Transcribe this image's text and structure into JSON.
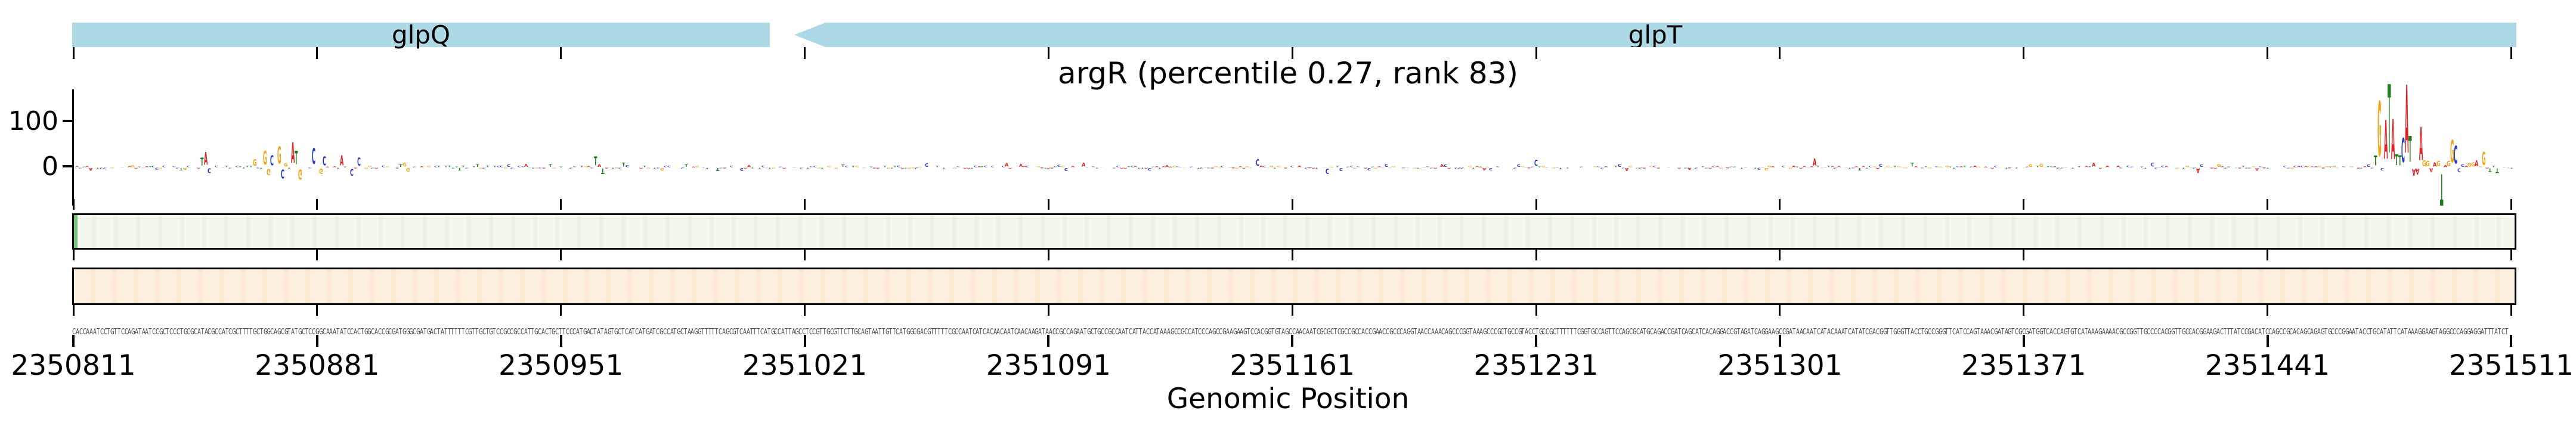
{
  "figure": {
    "background": "#ffffff"
  },
  "title": {
    "text": "argR (percentile 0.27, rank 83)"
  },
  "gene_track": {
    "fill": "#add8e6",
    "genes": [
      {
        "label": "glpQ",
        "start": 2350811,
        "end": 2351011,
        "strand": "+",
        "clipped_left": true
      },
      {
        "label": "glpT",
        "start": 2351018,
        "end": 2351511,
        "strand": "-",
        "clipped_right": true
      }
    ]
  },
  "attribution_panel": {
    "y_ticks": [
      {
        "value": 100,
        "label": "100"
      },
      {
        "value": 0,
        "label": "0"
      }
    ]
  },
  "marker_track": {
    "fill": "#f2f8ee",
    "border": "#000000",
    "marker_position": 2351485,
    "marker_color": "#7cc47c"
  },
  "sequence_track": {
    "fill": "#fdf0e1",
    "border": "#000000"
  },
  "axis": {
    "start": 2350811,
    "end": 2351511,
    "tick_interval": 70,
    "tick_labels": [
      "2350811",
      "2350881",
      "2350951",
      "2351021",
      "2351091",
      "2351161",
      "2351231",
      "2351301",
      "2351371",
      "2351441",
      "2351511"
    ],
    "xlabel": "Genomic Position"
  },
  "chart_data": {
    "type": "sequence-logo",
    "title": "argR (percentile 0.27, rank 83)",
    "window": {
      "start": 2350811,
      "end": 2351511
    },
    "ylim": [
      -80,
      170
    ],
    "y_ticks": [
      0,
      100
    ],
    "base_colors": {
      "A": "#e02426",
      "C": "#2337c6",
      "G": "#f5a216",
      "T": "#1f7d1f"
    },
    "sequence": "CACCAAATCCTGTTCCAGATAATCCGCTCCCTGCGCATACGCCATCGCTTTTGCTGGCAGCGTATGCTCCGGCAAATATCCACTGGCACCGCGATGGGCGATGACTATTTTTTCGTTGCTGTCCGCCGCCATTGCACTGCTTCCCATGACTATAGTGCTCATCATGATCGCCATGCTAAGGTTTTTCAGCGTCAATTTCATGCCATTAGCCTCCGTTGCGTTCTTGCAGTAATTGTTCATGGCGACGTTTTTCGCCAATCATCACAACAATCAACAAGATAACCGCCAGAATGCTGCCGCCAATCATTACCATAAAGCCGCCATCCCAGCCGAAGAAGTCCACGGTGTAGCCAACAATCGCGCTCGCCGCCACCGAACCGCCCAGGTAACCAAACAGCCCGGTAAAGCCCGCTGCCGTACCTGCCGCTTTTTTCGGTGCCAGTTCCAGCGCATGCAGACCGATCAGCATCACAGGACCGTAGATCAGGAAGCCGATAACAATCATACAAATCATATCGACGGTTGGGTTACCTGCCGGGTTCATCCAGTAAACGATAGTCGCGATGGTCACCAGTGTCATAAAGAAAACGCCGGTTGCCCCACGGTTGCCACGGAAGACTTTATCCGACATCCAGCCGCACAGCAGAGTGCCCGGAATACCTGCATATTCATAAAGGAAGTAGGCCCAGGAGGATTTATCT",
    "attribution_peaks": [
      [
        37,
        18
      ],
      [
        38,
        28
      ],
      [
        39,
        -10
      ],
      [
        52,
        15
      ],
      [
        55,
        30
      ],
      [
        56,
        -14
      ],
      [
        57,
        22
      ],
      [
        59,
        38
      ],
      [
        60,
        -20
      ],
      [
        63,
        45
      ],
      [
        64,
        30
      ],
      [
        65,
        -22
      ],
      [
        69,
        35
      ],
      [
        71,
        -12
      ],
      [
        72,
        20
      ],
      [
        77,
        22
      ],
      [
        80,
        -15
      ],
      [
        82,
        18
      ],
      [
        150,
        20
      ],
      [
        152,
        -12
      ],
      [
        340,
        15
      ],
      [
        360,
        -12
      ],
      [
        420,
        14
      ],
      [
        500,
        16
      ],
      [
        610,
        -10
      ],
      [
        661,
        21
      ],
      [
        662,
        121
      ],
      [
        663,
        -5
      ],
      [
        664,
        86
      ],
      [
        665,
        151
      ],
      [
        666,
        88
      ],
      [
        667,
        24
      ],
      [
        668,
        22
      ],
      [
        669,
        54
      ],
      [
        670,
        150
      ],
      [
        671,
        57
      ],
      [
        672,
        -15
      ],
      [
        673,
        -13
      ],
      [
        674,
        74
      ],
      [
        675,
        13
      ],
      [
        676,
        12
      ],
      [
        677,
        -8
      ],
      [
        678,
        9
      ],
      [
        679,
        12
      ],
      [
        680,
        -69
      ],
      [
        681,
        4
      ],
      [
        682,
        12
      ],
      [
        683,
        50
      ],
      [
        684,
        39
      ],
      [
        685,
        -8
      ],
      [
        688,
        8
      ],
      [
        689,
        9
      ],
      [
        690,
        13
      ],
      [
        692,
        28
      ],
      [
        694,
        -8
      ],
      [
        696,
        -10
      ]
    ],
    "background_noise": {
      "seed": 7,
      "typical_amplitude": 5
    }
  }
}
